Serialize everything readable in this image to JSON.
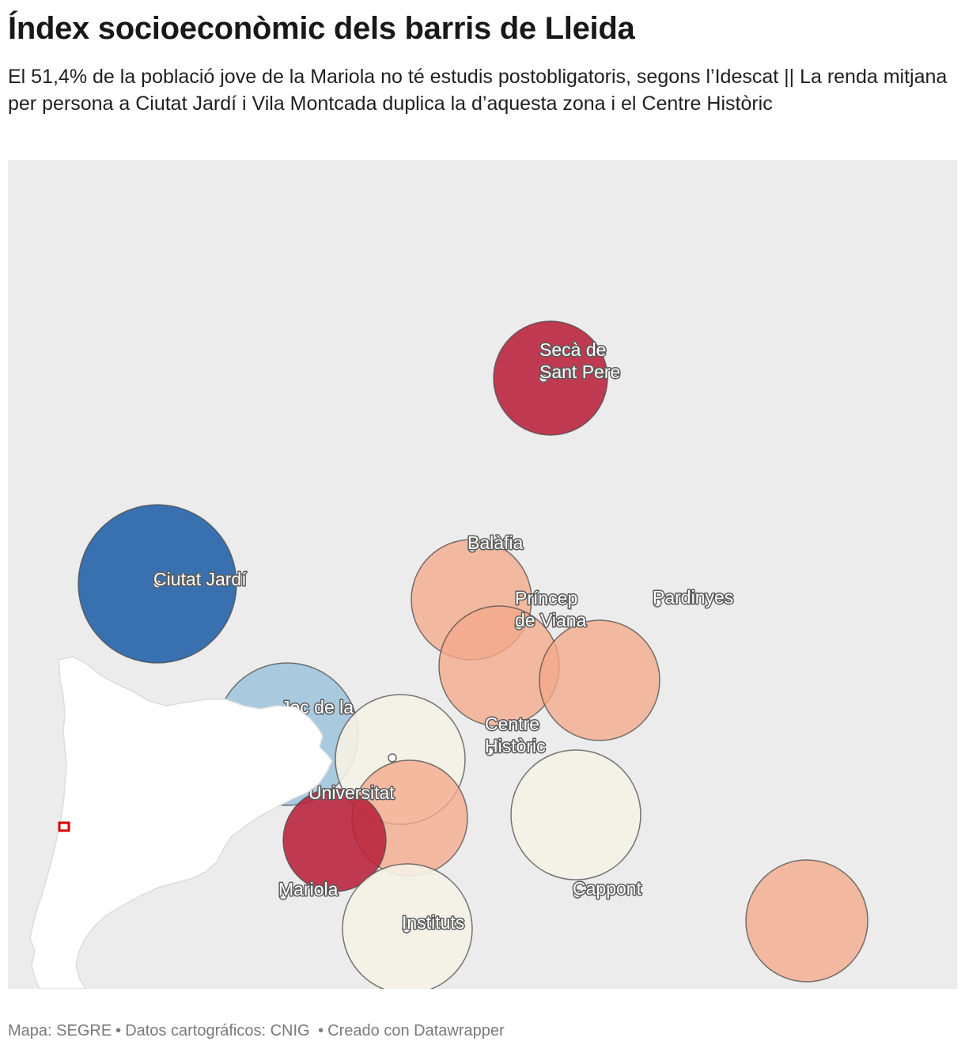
{
  "header": {
    "title": "Índex socioeconòmic dels barris de Lleida",
    "subtitle": "El 51,4% de la població jove de la Mariola no té estudis postobligatoris, segons l’Idescat || La renda mitjana per persona a Ciutat Jardí i Vila Montcada duplica la d’aquesta zona i el Centre Històric"
  },
  "map": {
    "background_color": "#ececec",
    "palette": {
      "dark_red": "#b8213a",
      "salmon": "#f4a98a",
      "cream": "#f5f2e6",
      "light_blue": "#9ec4dc",
      "dark_blue": "#2f6aad"
    },
    "neighborhoods": [
      {
        "name": "Secà de\nSant Pere",
        "category": "dark_red"
      },
      {
        "name": "Balàfia",
        "category": "salmon"
      },
      {
        "name": "Príncep\nde Viana",
        "category": "salmon"
      },
      {
        "name": "Pardinyes",
        "category": "salmon"
      },
      {
        "name": "Ciutat Jardí",
        "category": "dark_blue"
      },
      {
        "name": "Centre\nHistòric",
        "category": "salmon"
      },
      {
        "name": "Joc de la",
        "category": "light_blue"
      },
      {
        "name": "Universitat",
        "category": "cream"
      },
      {
        "name": "",
        "category": "salmon"
      },
      {
        "name": "Mariola",
        "category": "dark_red"
      },
      {
        "name": "Cappont",
        "category": "cream"
      },
      {
        "name": "Instituts",
        "category": "cream"
      },
      {
        "name": "",
        "category": "salmon"
      }
    ],
    "inset": {
      "region_icon": "catalonia-outline-icon",
      "marker_icon": "location-square-icon",
      "marker_color": "#d40000"
    }
  },
  "footer": {
    "map_credit": "Mapa: SEGRE",
    "data_credit": "Datos cartográficos: CNIG",
    "tool_credit": "Creado con Datawrapper"
  }
}
